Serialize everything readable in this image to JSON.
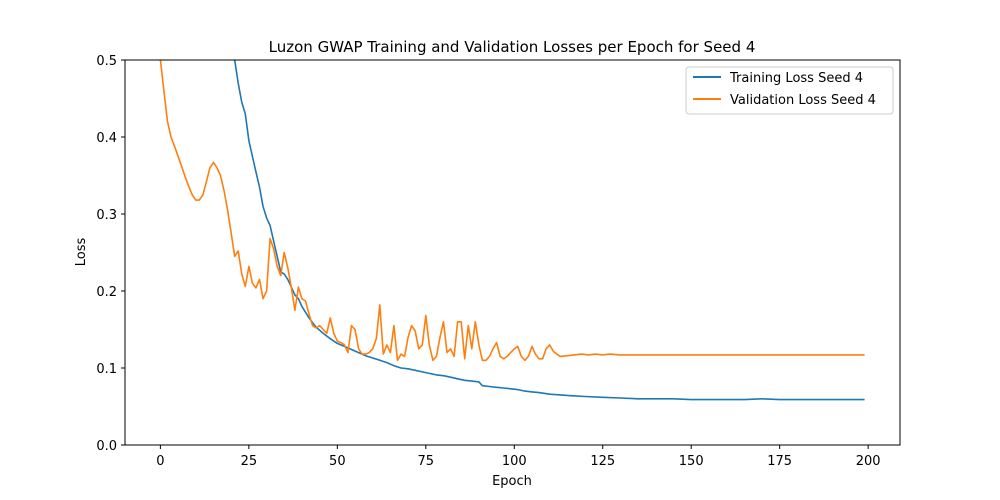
{
  "chart_data": {
    "type": "line",
    "title": "Luzon GWAP Training and Validation Losses per Epoch for Seed 4",
    "xlabel": "Epoch",
    "ylabel": "Loss",
    "xlim": [
      -10,
      209
    ],
    "ylim": [
      0.0,
      0.5
    ],
    "xticks": [
      0,
      25,
      50,
      75,
      100,
      125,
      150,
      175,
      200
    ],
    "yticks": [
      0.0,
      0.1,
      0.2,
      0.3,
      0.4,
      0.5
    ],
    "xtick_labels": [
      "0",
      "25",
      "50",
      "75",
      "100",
      "125",
      "150",
      "175",
      "200"
    ],
    "ytick_labels": [
      "0.0",
      "0.1",
      "0.2",
      "0.3",
      "0.4",
      "0.5"
    ],
    "grid": false,
    "legend_position": "top-right",
    "series": [
      {
        "name": "Training Loss Seed 4",
        "color": "#1f77b4",
        "x": [
          20,
          21,
          22,
          23,
          24,
          25,
          26,
          27,
          28,
          29,
          30,
          31,
          32,
          33,
          34,
          35,
          36,
          37,
          38,
          39,
          40,
          42,
          44,
          46,
          48,
          50,
          52,
          54,
          56,
          58,
          60,
          62,
          64,
          66,
          68,
          70,
          72,
          74,
          76,
          78,
          80,
          82,
          84,
          86,
          88,
          90,
          91,
          93,
          95,
          97,
          99,
          101,
          103,
          105,
          107,
          110,
          113,
          116,
          120,
          125,
          130,
          135,
          140,
          145,
          150,
          155,
          160,
          165,
          170,
          175,
          180,
          185,
          190,
          195,
          199
        ],
        "y": [
          0.52,
          0.5,
          0.47,
          0.445,
          0.43,
          0.395,
          0.375,
          0.355,
          0.335,
          0.31,
          0.295,
          0.285,
          0.265,
          0.245,
          0.225,
          0.222,
          0.215,
          0.205,
          0.195,
          0.19,
          0.18,
          0.165,
          0.153,
          0.145,
          0.138,
          0.132,
          0.128,
          0.124,
          0.12,
          0.116,
          0.113,
          0.11,
          0.107,
          0.103,
          0.1,
          0.099,
          0.097,
          0.095,
          0.093,
          0.091,
          0.09,
          0.088,
          0.086,
          0.084,
          0.083,
          0.082,
          0.077,
          0.076,
          0.075,
          0.074,
          0.073,
          0.072,
          0.07,
          0.069,
          0.068,
          0.066,
          0.065,
          0.064,
          0.063,
          0.062,
          0.061,
          0.06,
          0.06,
          0.06,
          0.059,
          0.059,
          0.059,
          0.059,
          0.06,
          0.059,
          0.059,
          0.059,
          0.059,
          0.059,
          0.059
        ]
      },
      {
        "name": "Validation Loss Seed 4",
        "color": "#ff7f0e",
        "x": [
          0,
          1,
          2,
          3,
          4,
          5,
          6,
          7,
          8,
          9,
          10,
          11,
          12,
          13,
          14,
          15,
          16,
          17,
          18,
          19,
          20,
          21,
          22,
          23,
          24,
          25,
          26,
          27,
          28,
          29,
          30,
          31,
          32,
          33,
          34,
          35,
          36,
          37,
          38,
          39,
          40,
          41,
          42,
          43,
          44,
          45,
          46,
          47,
          48,
          49,
          50,
          51,
          52,
          53,
          54,
          55,
          56,
          57,
          58,
          59,
          60,
          61,
          62,
          63,
          64,
          65,
          66,
          67,
          68,
          69,
          70,
          71,
          72,
          73,
          74,
          75,
          76,
          77,
          78,
          79,
          80,
          81,
          82,
          83,
          84,
          85,
          86,
          87,
          88,
          89,
          90,
          91,
          92,
          93,
          94,
          95,
          96,
          97,
          98,
          99,
          100,
          101,
          102,
          103,
          104,
          105,
          106,
          107,
          108,
          109,
          110,
          111,
          112,
          113,
          115,
          117,
          119,
          121,
          123,
          125,
          127,
          130,
          133,
          136,
          140,
          145,
          150,
          155,
          160,
          165,
          170,
          175,
          180,
          185,
          190,
          195,
          199
        ],
        "y": [
          0.5,
          0.46,
          0.42,
          0.4,
          0.388,
          0.375,
          0.362,
          0.348,
          0.336,
          0.325,
          0.318,
          0.318,
          0.325,
          0.342,
          0.36,
          0.367,
          0.36,
          0.35,
          0.33,
          0.305,
          0.275,
          0.245,
          0.252,
          0.222,
          0.206,
          0.232,
          0.21,
          0.204,
          0.215,
          0.19,
          0.2,
          0.268,
          0.255,
          0.232,
          0.22,
          0.25,
          0.23,
          0.205,
          0.175,
          0.205,
          0.19,
          0.187,
          0.17,
          0.155,
          0.152,
          0.155,
          0.15,
          0.145,
          0.165,
          0.145,
          0.135,
          0.133,
          0.13,
          0.12,
          0.155,
          0.15,
          0.125,
          0.118,
          0.118,
          0.12,
          0.125,
          0.138,
          0.182,
          0.118,
          0.13,
          0.12,
          0.155,
          0.11,
          0.118,
          0.115,
          0.14,
          0.155,
          0.148,
          0.125,
          0.13,
          0.168,
          0.13,
          0.11,
          0.115,
          0.14,
          0.16,
          0.12,
          0.125,
          0.115,
          0.16,
          0.16,
          0.112,
          0.155,
          0.125,
          0.16,
          0.13,
          0.11,
          0.11,
          0.115,
          0.125,
          0.133,
          0.115,
          0.112,
          0.115,
          0.12,
          0.125,
          0.128,
          0.115,
          0.11,
          0.115,
          0.128,
          0.118,
          0.112,
          0.112,
          0.125,
          0.13,
          0.122,
          0.118,
          0.115,
          0.116,
          0.117,
          0.118,
          0.117,
          0.118,
          0.117,
          0.118,
          0.117,
          0.117,
          0.117,
          0.117,
          0.117,
          0.117,
          0.117,
          0.117,
          0.117,
          0.117,
          0.117,
          0.117,
          0.117,
          0.117,
          0.117,
          0.117
        ]
      }
    ]
  }
}
